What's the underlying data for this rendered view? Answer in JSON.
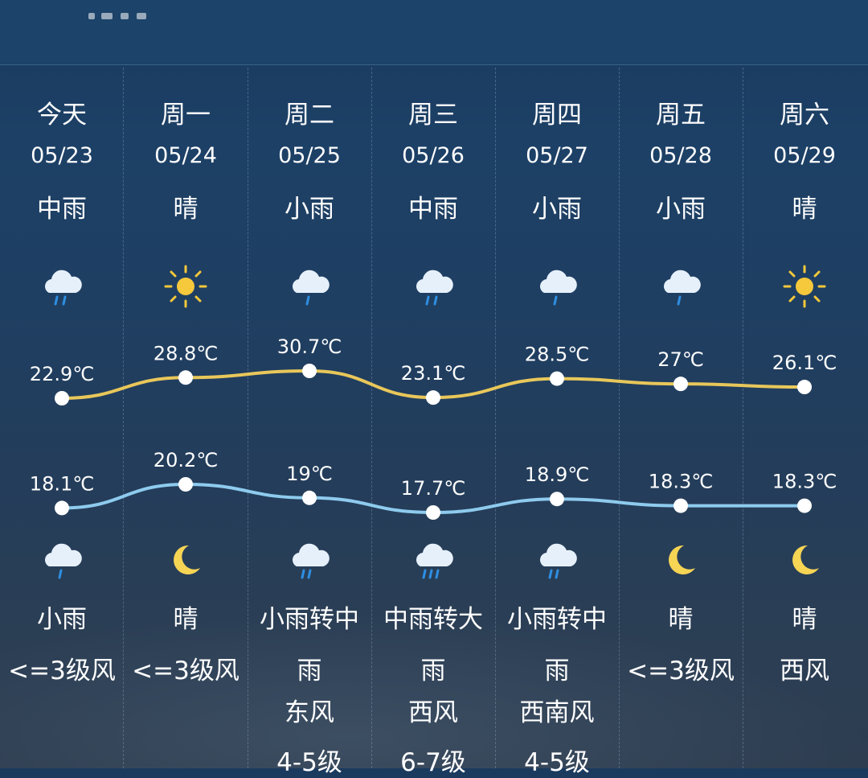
{
  "colors": {
    "high_line": "#e8c75a",
    "low_line": "#8ecbee",
    "point": "#ffffff",
    "sun": "#f6c83b",
    "moon": "#f6d454",
    "cloud": "#e6f0fb",
    "rain": "#2f8ee0"
  },
  "days": [
    {
      "day": "今天",
      "date": "05/23",
      "day_weather": "中雨",
      "day_icon": "cloud-rain-icon",
      "high": "22.9℃",
      "low": "18.1℃",
      "night_icon": "cloud-rain-icon",
      "night_weather": "小雨",
      "wind": [
        "<=3级风"
      ]
    },
    {
      "day": "周一",
      "date": "05/24",
      "day_weather": "晴",
      "day_icon": "sun-icon",
      "high": "28.8℃",
      "low": "20.2℃",
      "night_icon": "moon-icon",
      "night_weather": "晴",
      "wind": [
        "<=3级风"
      ]
    },
    {
      "day": "周二",
      "date": "05/25",
      "day_weather": "小雨",
      "day_icon": "cloud-rain-icon",
      "high": "30.7℃",
      "low": "19℃",
      "night_icon": "cloud-heavy-rain-icon",
      "night_weather": "小雨转中",
      "night_weather_2": "雨",
      "wind": [
        "东风",
        "4-5级"
      ]
    },
    {
      "day": "周三",
      "date": "05/26",
      "day_weather": "中雨",
      "day_icon": "cloud-rain-icon",
      "high": "23.1℃",
      "low": "17.7℃",
      "night_icon": "cloud-heavy-rain-icon",
      "night_weather": "中雨转大",
      "night_weather_2": "雨",
      "wind": [
        "西风",
        "6-7级"
      ]
    },
    {
      "day": "周四",
      "date": "05/27",
      "day_weather": "小雨",
      "day_icon": "cloud-rain-icon",
      "high": "28.5℃",
      "low": "18.9℃",
      "night_icon": "cloud-heavy-rain-icon",
      "night_weather": "小雨转中",
      "night_weather_2": "雨",
      "wind": [
        "西南风",
        "4-5级"
      ]
    },
    {
      "day": "周五",
      "date": "05/28",
      "day_weather": "小雨",
      "day_icon": "cloud-rain-icon",
      "high": "27℃",
      "low": "18.3℃",
      "night_icon": "moon-icon",
      "night_weather": "晴",
      "wind": [
        "<=3级风"
      ]
    },
    {
      "day": "周六",
      "date": "05/29",
      "day_weather": "晴",
      "day_icon": "sun-icon",
      "high": "26.1℃",
      "low": "18.3℃",
      "night_icon": "moon-icon",
      "night_weather": "晴",
      "wind": [
        "西风"
      ]
    }
  ],
  "chart_data": {
    "type": "line",
    "categories": [
      "今天",
      "周一",
      "周二",
      "周三",
      "周四",
      "周五",
      "周六"
    ],
    "series": [
      {
        "values": [
          22.9,
          28.8,
          30.7,
          23.1,
          28.5,
          27,
          26.1
        ]
      },
      {
        "values": [
          18.1,
          20.2,
          19,
          17.7,
          18.9,
          18.3,
          18.3
        ]
      }
    ]
  }
}
